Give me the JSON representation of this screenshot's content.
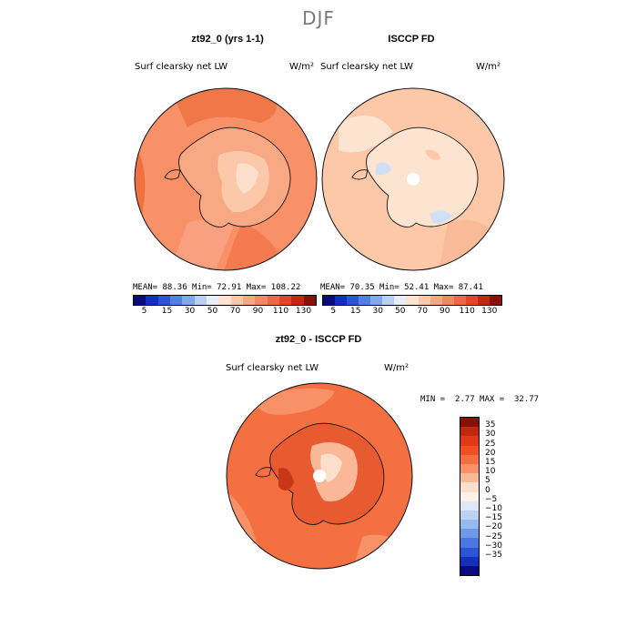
{
  "figure": {
    "season": "DJF"
  },
  "panels": [
    {
      "title": "zt92_0 (yrs 1-1)",
      "variable": "Surf clearsky net LW",
      "units": "W/m²",
      "mean_label": "MEAN=",
      "mean": "88.36",
      "min_label": "Min=",
      "min": "72.91",
      "max_label": "Max=",
      "max": "108.22"
    },
    {
      "title": "ISCCP FD",
      "variable": "Surf clearsky net LW",
      "units": "W/m²",
      "mean_label": "MEAN=",
      "mean": "70.35",
      "min_label": "Min=",
      "min": "52.41",
      "max_label": "Max=",
      "max": "87.41"
    },
    {
      "title": "zt92_0 - ISCCP FD",
      "variable": "Surf clearsky net LW",
      "units": "W/m²",
      "min_label": "MIN =",
      "min": "2.77",
      "max_label": "MAX =",
      "max": "32.77"
    }
  ],
  "colorbar_abs": {
    "colors": [
      "#0a0a80",
      "#1530b8",
      "#2a55d8",
      "#5080e8",
      "#80a8f0",
      "#b8d0f5",
      "#e8eef8",
      "#fde4d0",
      "#fcc8a8",
      "#f8a880",
      "#f58860",
      "#f06840",
      "#e04820",
      "#c02810",
      "#8a1005"
    ],
    "ticks": [
      "5",
      "15",
      "30",
      "50",
      "70",
      "90",
      "110",
      "130"
    ]
  },
  "colorbar_diff": {
    "colors": [
      "#8a1005",
      "#c02810",
      "#e03818",
      "#f05020",
      "#f47040",
      "#f89068",
      "#fbb898",
      "#fde0cc",
      "#fdf2e8",
      "#dde8f8",
      "#bcd2f5",
      "#98b8f0",
      "#7098e8",
      "#4a78e0",
      "#2a55d8",
      "#1530b8",
      "#0a0a80"
    ],
    "ticks": [
      "35",
      "30",
      "25",
      "20",
      "15",
      "10",
      "5",
      "0",
      "−5",
      "−10",
      "−15",
      "−20",
      "−25",
      "−30",
      "−35"
    ]
  }
}
